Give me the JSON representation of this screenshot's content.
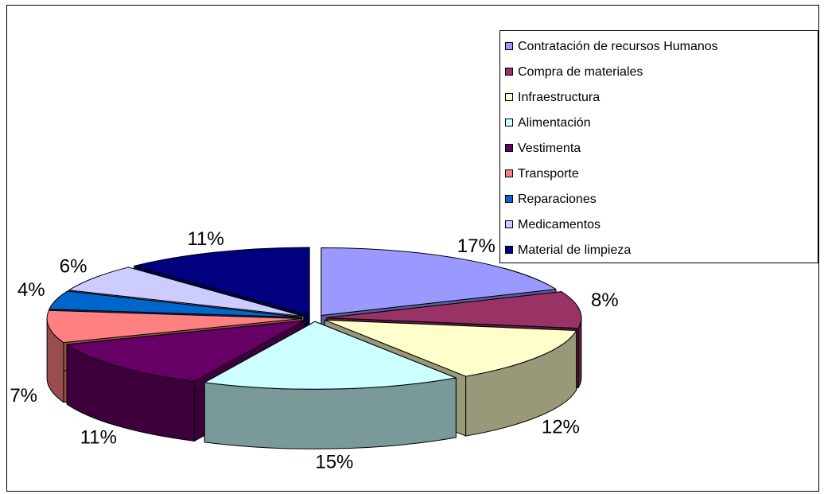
{
  "chart_data": {
    "type": "pie",
    "three_d": true,
    "exploded": true,
    "categories": [
      "Contratación de recursos Humanos",
      "Compra de materiales",
      "Infraestructura",
      "Alimentación",
      "Vestimenta",
      "Transporte",
      "Reparaciones",
      "Medicamentos",
      "Material de limpieza"
    ],
    "values": [
      17,
      8,
      12,
      15,
      11,
      7,
      4,
      6,
      11
    ],
    "value_labels": [
      "17%",
      "8%",
      "12%",
      "15%",
      "11%",
      "7%",
      "4%",
      "6%",
      "11%"
    ],
    "colors": [
      "#9999ff",
      "#993366",
      "#ffffcc",
      "#ccffff",
      "#660066",
      "#ff8080",
      "#0066cc",
      "#ccccff",
      "#000080"
    ],
    "legend": "right"
  }
}
